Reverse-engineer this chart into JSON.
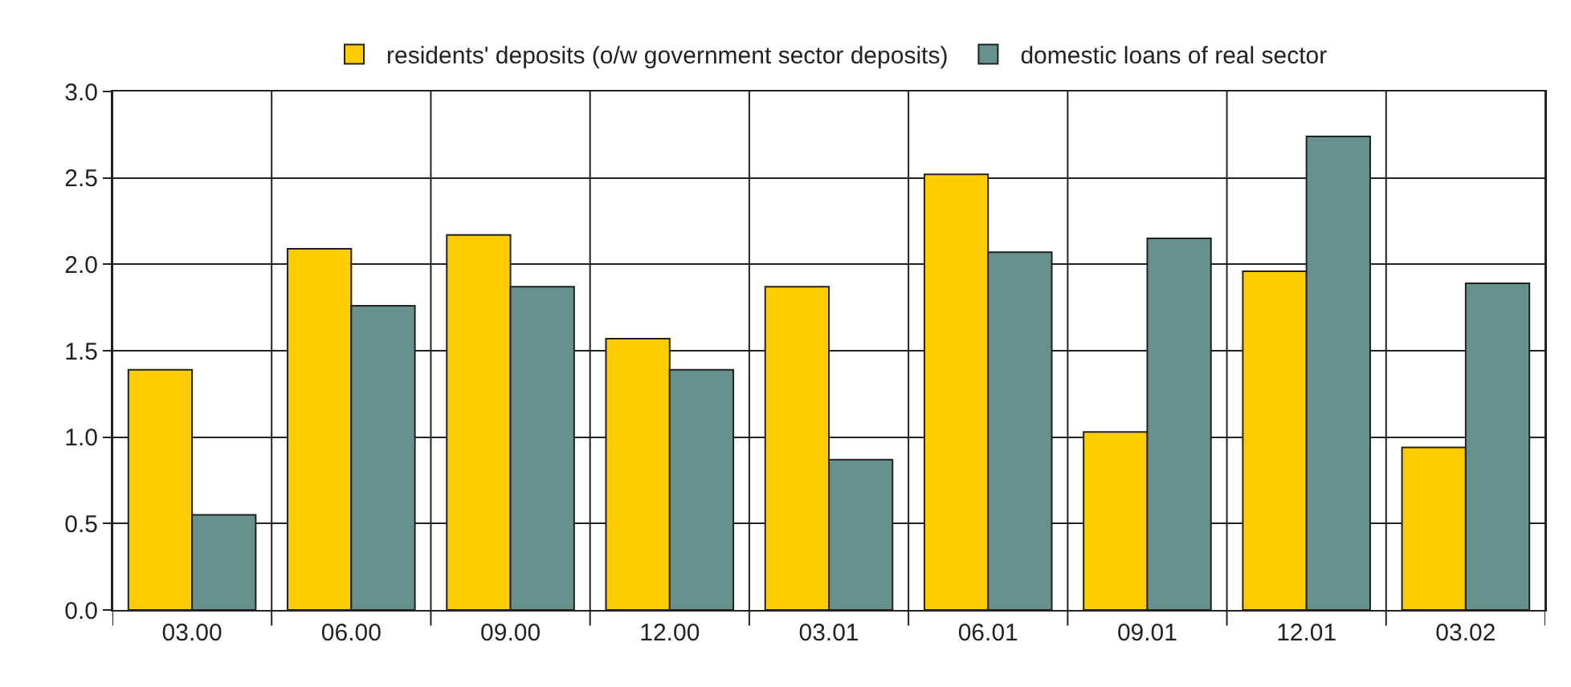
{
  "chart_data": {
    "type": "bar",
    "categories": [
      "03.00",
      "06.00",
      "09.00",
      "12.00",
      "03.01",
      "06.01",
      "09.01",
      "12.01",
      "03.02"
    ],
    "series": [
      {
        "name": "residents' deposits (o/w government sector deposits)",
        "color": "#ffcc00",
        "values": [
          1.39,
          2.09,
          2.17,
          1.57,
          1.87,
          2.52,
          1.03,
          1.96,
          0.94
        ]
      },
      {
        "name": "domestic loans of real sector",
        "color": "#66918d",
        "values": [
          0.55,
          1.76,
          1.87,
          1.39,
          0.87,
          2.07,
          2.15,
          2.74,
          1.89
        ]
      }
    ],
    "ylim": [
      0,
      3.0
    ],
    "yticks": [
      {
        "value": 0,
        "label": "0.0"
      },
      {
        "value": 0.5,
        "label": "0.5"
      },
      {
        "value": 1,
        "label": "1.0"
      },
      {
        "value": 1.5,
        "label": "1.5"
      },
      {
        "value": 2,
        "label": "2.0"
      },
      {
        "value": 2.5,
        "label": "2.5"
      },
      {
        "value": 3,
        "label": "3.0"
      }
    ],
    "grid": true,
    "legend": "top"
  }
}
